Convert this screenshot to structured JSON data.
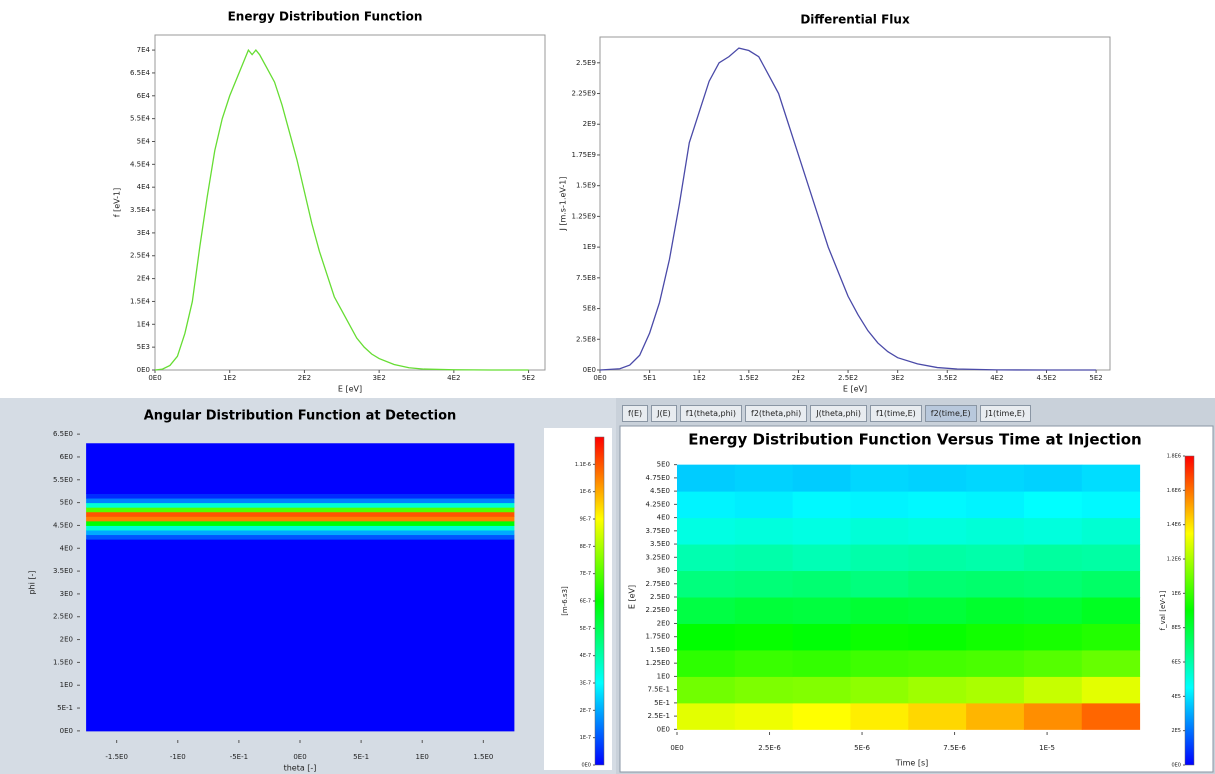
{
  "chart_data": [
    {
      "type": "line",
      "title": "Energy Distribution Function",
      "x_label": "E [eV]",
      "y_label": "f [eV-1]",
      "color": "#66dd33",
      "x": [
        0,
        10,
        20,
        30,
        40,
        50,
        60,
        70,
        80,
        90,
        100,
        110,
        120,
        125,
        130,
        135,
        140,
        150,
        160,
        170,
        180,
        190,
        200,
        210,
        220,
        230,
        240,
        250,
        260,
        270,
        280,
        290,
        300,
        320,
        340,
        360,
        400,
        450,
        500
      ],
      "values": [
        0,
        200,
        1000,
        3000,
        8000,
        15000,
        27000,
        38000,
        48000,
        55000,
        60000,
        64000,
        68000,
        70000,
        69000,
        70000,
        69000,
        66000,
        63000,
        58000,
        52000,
        46000,
        39000,
        32000,
        26000,
        21000,
        16000,
        13000,
        10000,
        7000,
        5000,
        3500,
        2500,
        1200,
        500,
        200,
        50,
        0,
        0
      ],
      "xlim": [
        0,
        522
      ],
      "ylim": [
        0,
        73300
      ],
      "xticks": [
        {
          "value": 0,
          "label": "0E0"
        },
        {
          "value": 100,
          "label": "1E2"
        },
        {
          "value": 200,
          "label": "2E2"
        },
        {
          "value": 300,
          "label": "3E2"
        },
        {
          "value": 400,
          "label": "4E2"
        },
        {
          "value": 500,
          "label": "5E2"
        }
      ],
      "yticks": [
        {
          "value": 0,
          "label": "0E0"
        },
        {
          "value": 5000,
          "label": "5E3"
        },
        {
          "value": 10000,
          "label": "1E4"
        },
        {
          "value": 15000,
          "label": "1.5E4"
        },
        {
          "value": 20000,
          "label": "2E4"
        },
        {
          "value": 25000,
          "label": "2.5E4"
        },
        {
          "value": 30000,
          "label": "3E4"
        },
        {
          "value": 35000,
          "label": "3.5E4"
        },
        {
          "value": 40000,
          "label": "4E4"
        },
        {
          "value": 45000,
          "label": "4.5E4"
        },
        {
          "value": 50000,
          "label": "5E4"
        },
        {
          "value": 55000,
          "label": "5.5E4"
        },
        {
          "value": 60000,
          "label": "6E4"
        },
        {
          "value": 65000,
          "label": "6.5E4"
        },
        {
          "value": 70000,
          "label": "7E4"
        }
      ]
    },
    {
      "type": "line",
      "title": "Differential Flux",
      "x_label": "E [eV]",
      "y_label": "J [m.s-1.eV-1]",
      "color": "#4a4aa8",
      "x": [
        0,
        20,
        30,
        40,
        50,
        60,
        70,
        80,
        90,
        100,
        110,
        120,
        130,
        140,
        150,
        160,
        170,
        180,
        190,
        200,
        210,
        220,
        230,
        240,
        250,
        260,
        270,
        280,
        290,
        300,
        320,
        340,
        360,
        400,
        450,
        500
      ],
      "values": [
        0,
        10000000,
        40000000,
        120000000,
        300000000,
        550000000,
        900000000,
        1350000000,
        1850000000,
        2100000000,
        2350000000,
        2500000000,
        2550000000,
        2620000000,
        2600000000,
        2550000000,
        2400000000,
        2250000000,
        2000000000,
        1750000000,
        1500000000,
        1250000000,
        1000000000,
        800000000,
        600000000,
        450000000,
        320000000,
        220000000,
        150000000,
        100000000,
        50000000,
        20000000,
        8000000,
        1000000,
        0,
        0
      ],
      "xlim": [
        0,
        514
      ],
      "ylim": [
        0,
        2710000000
      ],
      "xticks": [
        {
          "value": 0,
          "label": "0E0"
        },
        {
          "value": 50,
          "label": "5E1"
        },
        {
          "value": 100,
          "label": "1E2"
        },
        {
          "value": 150,
          "label": "1.5E2"
        },
        {
          "value": 200,
          "label": "2E2"
        },
        {
          "value": 250,
          "label": "2.5E2"
        },
        {
          "value": 300,
          "label": "3E2"
        },
        {
          "value": 350,
          "label": "3.5E2"
        },
        {
          "value": 400,
          "label": "4E2"
        },
        {
          "value": 450,
          "label": "4.5E2"
        },
        {
          "value": 500,
          "label": "5E2"
        }
      ],
      "yticks": [
        {
          "value": 0,
          "label": "0E0"
        },
        {
          "value": 250000000,
          "label": "2.5E8"
        },
        {
          "value": 500000000,
          "label": "5E8"
        },
        {
          "value": 750000000,
          "label": "7.5E8"
        },
        {
          "value": 1000000000,
          "label": "1E9"
        },
        {
          "value": 1250000000,
          "label": "1.25E9"
        },
        {
          "value": 1500000000,
          "label": "1.5E9"
        },
        {
          "value": 1750000000,
          "label": "1.75E9"
        },
        {
          "value": 2000000000,
          "label": "2E9"
        },
        {
          "value": 2250000000,
          "label": "2.25E9"
        },
        {
          "value": 2500000000,
          "label": "2.5E9"
        }
      ]
    },
    {
      "type": "heatmap",
      "title": "Angular Distribution Function at Detection",
      "x_label": "theta [-]",
      "y_label": "phi [-]",
      "colorbar_label": "[m-6.s3]",
      "colormap": [
        "#0000ff",
        "#00ffff",
        "#00ff00",
        "#ffff00",
        "#ff0000"
      ],
      "xbins": [
        -1.75,
        1.75
      ],
      "ybins": [
        0,
        4.2,
        4.3,
        4.4,
        4.5,
        4.6,
        4.7,
        4.8,
        4.9,
        5.0,
        5.1,
        5.2,
        6.3
      ],
      "values": [
        [
          0
        ],
        [
          1e-07
        ],
        [
          2e-07
        ],
        [
          3.5e-07
        ],
        [
          6e-07
        ],
        [
          1.05e-06
        ],
        [
          1.1e-06
        ],
        [
          7e-07
        ],
        [
          3.5e-07
        ],
        [
          1.5e-07
        ],
        [
          5e-08
        ],
        [
          0
        ]
      ],
      "xlim": [
        -1.8,
        1.8
      ],
      "ylim": [
        -0.2,
        6.7
      ],
      "zlim": [
        0,
        1.2e-06
      ],
      "xticks": [
        {
          "value": -1.5,
          "label": "-1.5E0"
        },
        {
          "value": -1,
          "label": "-1E0"
        },
        {
          "value": -0.5,
          "label": "-5E-1"
        },
        {
          "value": 0,
          "label": "0E0"
        },
        {
          "value": 0.5,
          "label": "5E-1"
        },
        {
          "value": 1,
          "label": "1E0"
        },
        {
          "value": 1.5,
          "label": "1.5E0"
        }
      ],
      "yticks": [
        {
          "value": 0,
          "label": "0E0"
        },
        {
          "value": 0.5,
          "label": "5E-1"
        },
        {
          "value": 1,
          "label": "1E0"
        },
        {
          "value": 1.5,
          "label": "1.5E0"
        },
        {
          "value": 2,
          "label": "2E0"
        },
        {
          "value": 2.5,
          "label": "2.5E0"
        },
        {
          "value": 3,
          "label": "3E0"
        },
        {
          "value": 3.5,
          "label": "3.5E0"
        },
        {
          "value": 4,
          "label": "4E0"
        },
        {
          "value": 4.5,
          "label": "4.5E0"
        },
        {
          "value": 5,
          "label": "5E0"
        },
        {
          "value": 5.5,
          "label": "5.5E0"
        },
        {
          "value": 6,
          "label": "6E0"
        },
        {
          "value": 6.5,
          "label": "6.5E0"
        }
      ],
      "zticks": [
        {
          "value": 0,
          "label": "0E0"
        },
        {
          "value": 1e-07,
          "label": "1E-7"
        },
        {
          "value": 2e-07,
          "label": "2E-7"
        },
        {
          "value": 3e-07,
          "label": "3E-7"
        },
        {
          "value": 4e-07,
          "label": "4E-7"
        },
        {
          "value": 5e-07,
          "label": "5E-7"
        },
        {
          "value": 6e-07,
          "label": "6E-7"
        },
        {
          "value": 7e-07,
          "label": "7E-7"
        },
        {
          "value": 8e-07,
          "label": "8E-7"
        },
        {
          "value": 9e-07,
          "label": "9E-7"
        },
        {
          "value": 1e-06,
          "label": "1E-6"
        },
        {
          "value": 1.1e-06,
          "label": "1.1E-6"
        }
      ]
    },
    {
      "type": "heatmap",
      "title": "Energy Distribution Function Versus Time at Injection",
      "x_label": "Time [s]",
      "y_label": "E [eV]",
      "colorbar_label": "f_val [eV-1]",
      "colormap": [
        "#0000ff",
        "#00ffff",
        "#00ff00",
        "#ffff00",
        "#ff0000"
      ],
      "xbins": [
        0,
        1.5625e-06,
        3.125e-06,
        4.6875e-06,
        6.25e-06,
        7.8125e-06,
        9.375e-06,
        1.09375e-05,
        1.25e-05
      ],
      "ybins": [
        0,
        0.5,
        1,
        1.5,
        2,
        2.5,
        3,
        3.5,
        4,
        4.5,
        5
      ],
      "values": [
        [
          1300000,
          1320000,
          1350000,
          1380000,
          1420000,
          1480000,
          1550000,
          1620000
        ],
        [
          1100000,
          1120000,
          1130000,
          1150000,
          1180000,
          1200000,
          1250000,
          1300000
        ],
        [
          980000,
          1000000,
          990000,
          1010000,
          1020000,
          1030000,
          1050000,
          1080000
        ],
        [
          900000,
          910000,
          890000,
          920000,
          910000,
          930000,
          940000,
          960000
        ],
        [
          780000,
          800000,
          790000,
          810000,
          800000,
          820000,
          810000,
          840000
        ],
        [
          680000,
          690000,
          700000,
          680000,
          700000,
          710000,
          700000,
          720000
        ],
        [
          590000,
          600000,
          580000,
          600000,
          610000,
          600000,
          620000,
          610000
        ],
        [
          500000,
          510000,
          500000,
          520000,
          510000,
          520000,
          510000,
          530000
        ],
        [
          430000,
          420000,
          440000,
          430000,
          440000,
          430000,
          450000,
          440000
        ],
        [
          360000,
          370000,
          360000,
          380000,
          370000,
          380000,
          370000,
          390000
        ]
      ],
      "xlim": [
        0,
        1.27e-05
      ],
      "ylim": [
        -0.05,
        5.05
      ],
      "zlim": [
        0,
        1800000
      ],
      "xticks": [
        {
          "value": 0,
          "label": "0E0"
        },
        {
          "value": 2.5e-06,
          "label": "2.5E-6"
        },
        {
          "value": 5e-06,
          "label": "5E-6"
        },
        {
          "value": 7.5e-06,
          "label": "7.5E-6"
        },
        {
          "value": 1e-05,
          "label": "1E-5"
        }
      ],
      "yticks": [
        {
          "value": 0,
          "label": "0E0"
        },
        {
          "value": 0.25,
          "label": "2.5E-1"
        },
        {
          "value": 0.5,
          "label": "5E-1"
        },
        {
          "value": 0.75,
          "label": "7.5E-1"
        },
        {
          "value": 1,
          "label": "1E0"
        },
        {
          "value": 1.25,
          "label": "1.25E0"
        },
        {
          "value": 1.5,
          "label": "1.5E0"
        },
        {
          "value": 1.75,
          "label": "1.75E0"
        },
        {
          "value": 2,
          "label": "2E0"
        },
        {
          "value": 2.25,
          "label": "2.25E0"
        },
        {
          "value": 2.5,
          "label": "2.5E0"
        },
        {
          "value": 2.75,
          "label": "2.75E0"
        },
        {
          "value": 3,
          "label": "3E0"
        },
        {
          "value": 3.25,
          "label": "3.25E0"
        },
        {
          "value": 3.5,
          "label": "3.5E0"
        },
        {
          "value": 3.75,
          "label": "3.75E0"
        },
        {
          "value": 4,
          "label": "4E0"
        },
        {
          "value": 4.25,
          "label": "4.25E0"
        },
        {
          "value": 4.5,
          "label": "4.5E0"
        },
        {
          "value": 4.75,
          "label": "4.75E0"
        },
        {
          "value": 5,
          "label": "5E0"
        }
      ],
      "zticks": [
        {
          "value": 0,
          "label": "0E0"
        },
        {
          "value": 200000,
          "label": "2E5"
        },
        {
          "value": 400000,
          "label": "4E5"
        },
        {
          "value": 600000,
          "label": "6E5"
        },
        {
          "value": 800000,
          "label": "8E5"
        },
        {
          "value": 1000000,
          "label": "1E6"
        },
        {
          "value": 1200000,
          "label": "1.2E6"
        },
        {
          "value": 1400000,
          "label": "1.4E6"
        },
        {
          "value": 1600000,
          "label": "1.6E6"
        },
        {
          "value": 1800000,
          "label": "1.8E6"
        }
      ]
    }
  ],
  "tabs": [
    "f(E)",
    "J(E)",
    "f1(theta,phi)",
    "f2(theta,phi)",
    "J(theta,phi)",
    "f1(time,E)",
    "f2(time,E)",
    "J1(time,E)"
  ],
  "selected_tab": 6
}
